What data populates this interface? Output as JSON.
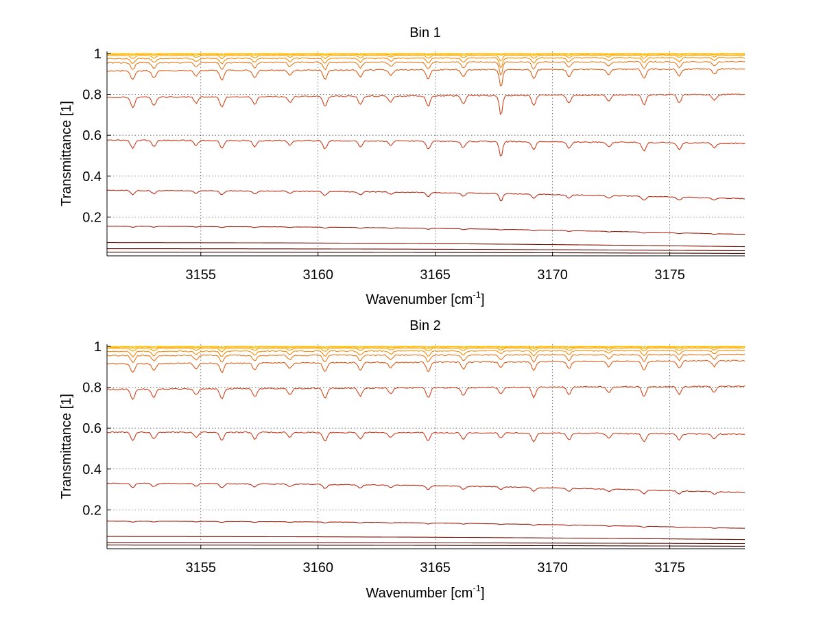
{
  "chart_data": [
    {
      "type": "line",
      "title": "Bin 1",
      "xlabel": "Wavenumber [cm",
      "xlabel_sup": "-1",
      "xlabel_end": "]",
      "ylabel": "Transmittance [1]",
      "xlim": [
        3151,
        3178.2
      ],
      "ylim": [
        0.01,
        1.01
      ],
      "xticks": [
        3155,
        3160,
        3165,
        3170,
        3175
      ],
      "xtick_labels": [
        "3155",
        "3160",
        "3165",
        "3170",
        "3175"
      ],
      "yticks": [
        0.2,
        0.4,
        0.6,
        0.8,
        1
      ],
      "ytick_labels": [
        "0.2",
        "0.4",
        "0.6",
        "0.8",
        "1"
      ],
      "grid": "dotted",
      "absorption_lines": [
        3152.1,
        3153.0,
        3154.8,
        3155.9,
        3157.3,
        3158.8,
        3160.3,
        3161.8,
        3163.1,
        3164.7,
        3166.2,
        3167.8,
        3169.2,
        3170.7,
        3172.4,
        3173.9,
        3175.4,
        3176.9
      ],
      "series": [
        {
          "color": "#ffd700",
          "start": 1.0,
          "end": 1.0,
          "depth": 0.003
        },
        {
          "color": "#ffc400",
          "start": 0.999,
          "end": 0.999,
          "depth": 0.004
        },
        {
          "color": "#ffae00",
          "start": 0.996,
          "end": 0.997,
          "depth": 0.008
        },
        {
          "color": "#ff9a00",
          "start": 0.99,
          "end": 0.992,
          "depth": 0.015
        },
        {
          "color": "#f58a00",
          "start": 0.975,
          "end": 0.98,
          "depth": 0.025
        },
        {
          "color": "#e8761a",
          "start": 0.955,
          "end": 0.96,
          "depth": 0.035
        },
        {
          "color": "#dc5a14",
          "start": 0.915,
          "end": 0.925,
          "depth": 0.045
        },
        {
          "color": "#d2421a",
          "start": 0.785,
          "end": 0.8,
          "depth": 0.05
        },
        {
          "color": "#cc3a1a",
          "start": 0.575,
          "end": 0.56,
          "depth": 0.04
        },
        {
          "color": "#b82a14",
          "start": 0.33,
          "end": 0.29,
          "depth": 0.02
        },
        {
          "color": "#a01e10",
          "start": 0.155,
          "end": 0.115,
          "depth": 0.005
        },
        {
          "color": "#7a1208",
          "start": 0.075,
          "end": 0.055,
          "depth": 0.0
        },
        {
          "color": "#600c06",
          "start": 0.045,
          "end": 0.035,
          "depth": 0.0
        },
        {
          "color": "#400600",
          "start": 0.028,
          "end": 0.022,
          "depth": 0.0
        }
      ]
    },
    {
      "type": "line",
      "title": "Bin 2",
      "xlabel": "Wavenumber [cm",
      "xlabel_sup": "-1",
      "xlabel_end": "]",
      "ylabel": "Transmittance [1]",
      "xlim": [
        3151,
        3178.2
      ],
      "ylim": [
        0.01,
        1.01
      ],
      "xticks": [
        3155,
        3160,
        3165,
        3170,
        3175
      ],
      "xtick_labels": [
        "3155",
        "3160",
        "3165",
        "3170",
        "3175"
      ],
      "yticks": [
        0.2,
        0.4,
        0.6,
        0.8,
        1
      ],
      "ytick_labels": [
        "0.2",
        "0.4",
        "0.6",
        "0.8",
        "1"
      ],
      "grid": "dotted",
      "absorption_lines": [
        3152.1,
        3153.0,
        3154.8,
        3155.9,
        3157.3,
        3158.8,
        3160.3,
        3161.8,
        3163.1,
        3164.7,
        3166.2,
        3167.8,
        3169.2,
        3170.7,
        3172.4,
        3173.9,
        3175.4,
        3176.9
      ],
      "series": [
        {
          "color": "#ffd700",
          "start": 1.0,
          "end": 1.0,
          "depth": 0.003
        },
        {
          "color": "#ffc400",
          "start": 0.999,
          "end": 0.999,
          "depth": 0.004
        },
        {
          "color": "#ffae00",
          "start": 0.996,
          "end": 0.997,
          "depth": 0.008
        },
        {
          "color": "#ff9a00",
          "start": 0.99,
          "end": 0.992,
          "depth": 0.015
        },
        {
          "color": "#f58a00",
          "start": 0.975,
          "end": 0.98,
          "depth": 0.025
        },
        {
          "color": "#e8761a",
          "start": 0.955,
          "end": 0.96,
          "depth": 0.035
        },
        {
          "color": "#dc5a14",
          "start": 0.915,
          "end": 0.93,
          "depth": 0.045
        },
        {
          "color": "#d2421a",
          "start": 0.79,
          "end": 0.805,
          "depth": 0.05
        },
        {
          "color": "#cc3a1a",
          "start": 0.58,
          "end": 0.57,
          "depth": 0.04
        },
        {
          "color": "#b82a14",
          "start": 0.33,
          "end": 0.285,
          "depth": 0.02
        },
        {
          "color": "#a01e10",
          "start": 0.145,
          "end": 0.11,
          "depth": 0.005
        },
        {
          "color": "#7a1208",
          "start": 0.07,
          "end": 0.055,
          "depth": 0.0
        },
        {
          "color": "#600c06",
          "start": 0.04,
          "end": 0.035,
          "depth": 0.0
        },
        {
          "color": "#400600",
          "start": 0.028,
          "end": 0.022,
          "depth": 0.0
        }
      ]
    }
  ]
}
